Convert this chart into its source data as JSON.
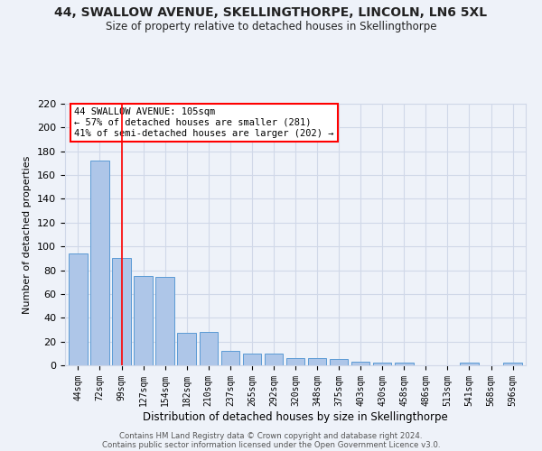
{
  "title": "44, SWALLOW AVENUE, SKELLINGTHORPE, LINCOLN, LN6 5XL",
  "subtitle": "Size of property relative to detached houses in Skellingthorpe",
  "xlabel": "Distribution of detached houses by size in Skellingthorpe",
  "ylabel": "Number of detached properties",
  "categories": [
    "44sqm",
    "72sqm",
    "99sqm",
    "127sqm",
    "154sqm",
    "182sqm",
    "210sqm",
    "237sqm",
    "265sqm",
    "292sqm",
    "320sqm",
    "348sqm",
    "375sqm",
    "403sqm",
    "430sqm",
    "458sqm",
    "486sqm",
    "513sqm",
    "541sqm",
    "568sqm",
    "596sqm"
  ],
  "values": [
    94,
    172,
    90,
    75,
    74,
    27,
    28,
    12,
    10,
    10,
    6,
    6,
    5,
    3,
    2,
    2,
    0,
    0,
    2,
    0,
    2
  ],
  "bar_color": "#aec6e8",
  "bar_edge_color": "#5b9bd5",
  "grid_color": "#d0d8e8",
  "background_color": "#eef2f9",
  "red_line_x": 2,
  "annotation_line1": "44 SWALLOW AVENUE: 105sqm",
  "annotation_line2": "← 57% of detached houses are smaller (281)",
  "annotation_line3": "41% of semi-detached houses are larger (202) →",
  "annotation_box_color": "white",
  "annotation_box_edge": "red",
  "ylim": [
    0,
    220
  ],
  "yticks": [
    0,
    20,
    40,
    60,
    80,
    100,
    120,
    140,
    160,
    180,
    200,
    220
  ],
  "footer1": "Contains HM Land Registry data © Crown copyright and database right 2024.",
  "footer2": "Contains public sector information licensed under the Open Government Licence v3.0."
}
